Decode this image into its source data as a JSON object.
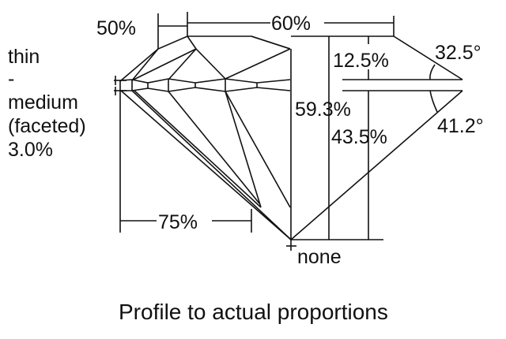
{
  "labels": {
    "girdle": [
      "thin",
      "-",
      "medium",
      "(faceted)",
      "3.0%"
    ],
    "star_length": "50%",
    "table": "60%",
    "crown_height": "12.5%",
    "crown_angle": "32.5°",
    "total_depth": "59.3%",
    "pavilion_depth": "43.5%",
    "pavilion_angle": "41.2°",
    "lower_half": "75%",
    "culet": "none"
  },
  "caption": "Profile to actual proportions"
}
